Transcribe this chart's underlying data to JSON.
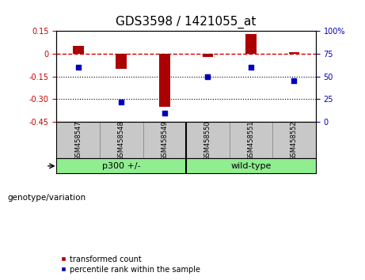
{
  "title": "GDS3598 / 1421055_at",
  "samples": [
    "GSM458547",
    "GSM458548",
    "GSM458549",
    "GSM458550",
    "GSM458551",
    "GSM458552"
  ],
  "bar_values": [
    0.05,
    -0.1,
    -0.35,
    -0.02,
    0.13,
    0.01
  ],
  "dot_values": [
    60,
    22,
    10,
    50,
    60,
    45
  ],
  "ylim_left": [
    -0.45,
    0.15
  ],
  "ylim_right": [
    0,
    100
  ],
  "yticks_left": [
    0.15,
    0.0,
    -0.15,
    -0.3,
    -0.45
  ],
  "yticks_right": [
    100,
    75,
    50,
    25,
    0
  ],
  "bar_color": "#AA0000",
  "dot_color": "#0000BB",
  "hline_color": "#CC0000",
  "dotted_lines": [
    -0.15,
    -0.3
  ],
  "group_labels": [
    "p300 +/-",
    "wild-type"
  ],
  "group_color": "#90EE90",
  "label_box_color": "#C8C8C8",
  "xlabel_bottom": "genotype/variation",
  "legend_labels": [
    "transformed count",
    "percentile rank within the sample"
  ],
  "bg_color": "#FFFFFF",
  "plot_bg": "#FFFFFF",
  "tick_label_fontsize": 7,
  "title_fontsize": 11,
  "bar_width": 0.25
}
